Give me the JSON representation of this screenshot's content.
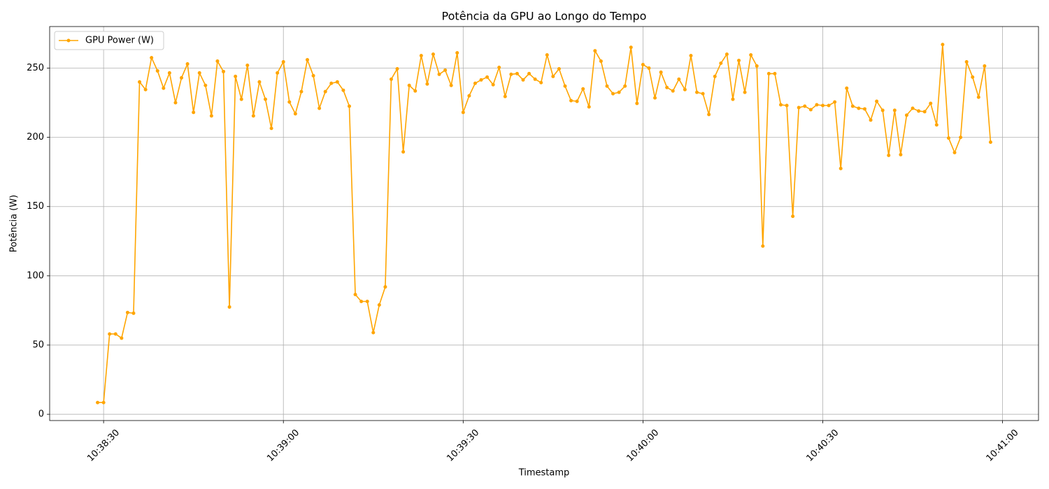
{
  "chart_data": {
    "type": "line",
    "title": "Potência da GPU ao Longo do Tempo",
    "x_label": "Timestamp",
    "y_label": "Potência (W)",
    "x": [
      "10:38:29",
      "10:38:30",
      "10:38:31",
      "10:38:32",
      "10:38:33",
      "10:38:34",
      "10:38:35",
      "10:38:36",
      "10:38:37",
      "10:38:38",
      "10:38:39",
      "10:38:40",
      "10:38:41",
      "10:38:42",
      "10:38:43",
      "10:38:44",
      "10:38:45",
      "10:38:46",
      "10:38:47",
      "10:38:48",
      "10:38:49",
      "10:38:50",
      "10:38:51",
      "10:38:52",
      "10:38:53",
      "10:38:54",
      "10:38:55",
      "10:38:56",
      "10:38:57",
      "10:38:58",
      "10:38:59",
      "10:39:00",
      "10:39:01",
      "10:39:02",
      "10:39:03",
      "10:39:04",
      "10:39:05",
      "10:39:06",
      "10:39:07",
      "10:39:08",
      "10:39:09",
      "10:39:10",
      "10:39:11",
      "10:39:12",
      "10:39:13",
      "10:39:14",
      "10:39:15",
      "10:39:16",
      "10:39:17",
      "10:39:18",
      "10:39:19",
      "10:39:20",
      "10:39:21",
      "10:39:22",
      "10:39:23",
      "10:39:24",
      "10:39:25",
      "10:39:26",
      "10:39:27",
      "10:39:28",
      "10:39:29",
      "10:39:30",
      "10:39:31",
      "10:39:32",
      "10:39:33",
      "10:39:34",
      "10:39:35",
      "10:39:36",
      "10:39:37",
      "10:39:38",
      "10:39:39",
      "10:39:40",
      "10:39:41",
      "10:39:42",
      "10:39:43",
      "10:39:44",
      "10:39:45",
      "10:39:46",
      "10:39:47",
      "10:39:48",
      "10:39:49",
      "10:39:50",
      "10:39:51",
      "10:39:52",
      "10:39:53",
      "10:39:54",
      "10:39:55",
      "10:39:56",
      "10:39:57",
      "10:39:58",
      "10:39:59",
      "10:40:00",
      "10:40:01",
      "10:40:02",
      "10:40:03",
      "10:40:04",
      "10:40:05",
      "10:40:06",
      "10:40:07",
      "10:40:08",
      "10:40:09",
      "10:40:10",
      "10:40:11",
      "10:40:12",
      "10:40:13",
      "10:40:14",
      "10:40:15",
      "10:40:16",
      "10:40:17",
      "10:40:18",
      "10:40:19",
      "10:40:20",
      "10:40:21",
      "10:40:22",
      "10:40:23",
      "10:40:24",
      "10:40:25",
      "10:40:26",
      "10:40:27",
      "10:40:28",
      "10:40:29",
      "10:40:30",
      "10:40:31",
      "10:40:32",
      "10:40:33",
      "10:40:34",
      "10:40:35",
      "10:40:36",
      "10:40:37",
      "10:40:38",
      "10:40:39",
      "10:40:40",
      "10:40:41",
      "10:40:42",
      "10:40:43",
      "10:40:44",
      "10:40:45",
      "10:40:46",
      "10:40:47",
      "10:40:48",
      "10:40:49",
      "10:40:50",
      "10:40:51",
      "10:40:52",
      "10:40:53",
      "10:40:54",
      "10:40:55",
      "10:40:56",
      "10:40:57",
      "10:40:58"
    ],
    "series": [
      {
        "name": "GPU Power (W)",
        "color": "#ffa500",
        "values": [
          8.5,
          8.5,
          58,
          58,
          55,
          73.5,
          73,
          240,
          234.5,
          257.5,
          248,
          235.5,
          246.5,
          225,
          243,
          253,
          218,
          246.5,
          237.5,
          215.5,
          255,
          247.5,
          77.5,
          244,
          227.5,
          252,
          215.5,
          240,
          227.5,
          206.5,
          246.5,
          254.5,
          225.5,
          217,
          233,
          256,
          244.5,
          221,
          233,
          239,
          240,
          234,
          222.5,
          86.5,
          81.5,
          81.5,
          59,
          79,
          92,
          242,
          249.5,
          189.5,
          237.5,
          233.5,
          259,
          238.5,
          260,
          245.5,
          248.5,
          237.5,
          261,
          218,
          230,
          239,
          241.5,
          243.5,
          238,
          250.5,
          229.5,
          245.5,
          246,
          241.5,
          246,
          242,
          239.5,
          259.5,
          244,
          249.5,
          237,
          226.5,
          226,
          235,
          222,
          262.5,
          255,
          237,
          231.5,
          232.5,
          237,
          265,
          224.5,
          252.5,
          250,
          228.5,
          247,
          236,
          233.5,
          242,
          234.5,
          259,
          232.5,
          231.5,
          216.5,
          244,
          253.5,
          260,
          227.5,
          255.5,
          232.5,
          259.5,
          251.5,
          121.5,
          246,
          246,
          223.5,
          223,
          143,
          221.5,
          222.5,
          220,
          223.5,
          223,
          223,
          225.5,
          177.5,
          235.5,
          222.5,
          221,
          220.5,
          212.5,
          226,
          219.5,
          187,
          219.5,
          187.5,
          216,
          221,
          219,
          218.5,
          224.5,
          209,
          267,
          199.5,
          189,
          200,
          254.5,
          243.5,
          229,
          251.5,
          196.5
        ]
      }
    ],
    "xlim": [
      "10:38:21",
      "10:41:06"
    ],
    "xticks": [
      "10:38:30",
      "10:39:00",
      "10:39:30",
      "10:40:00",
      "10:40:30",
      "10:41:00"
    ],
    "ylim": [
      -4.5,
      280
    ],
    "yticks": [
      0,
      50,
      100,
      150,
      200,
      250
    ],
    "grid": true,
    "legend": "upper left"
  }
}
